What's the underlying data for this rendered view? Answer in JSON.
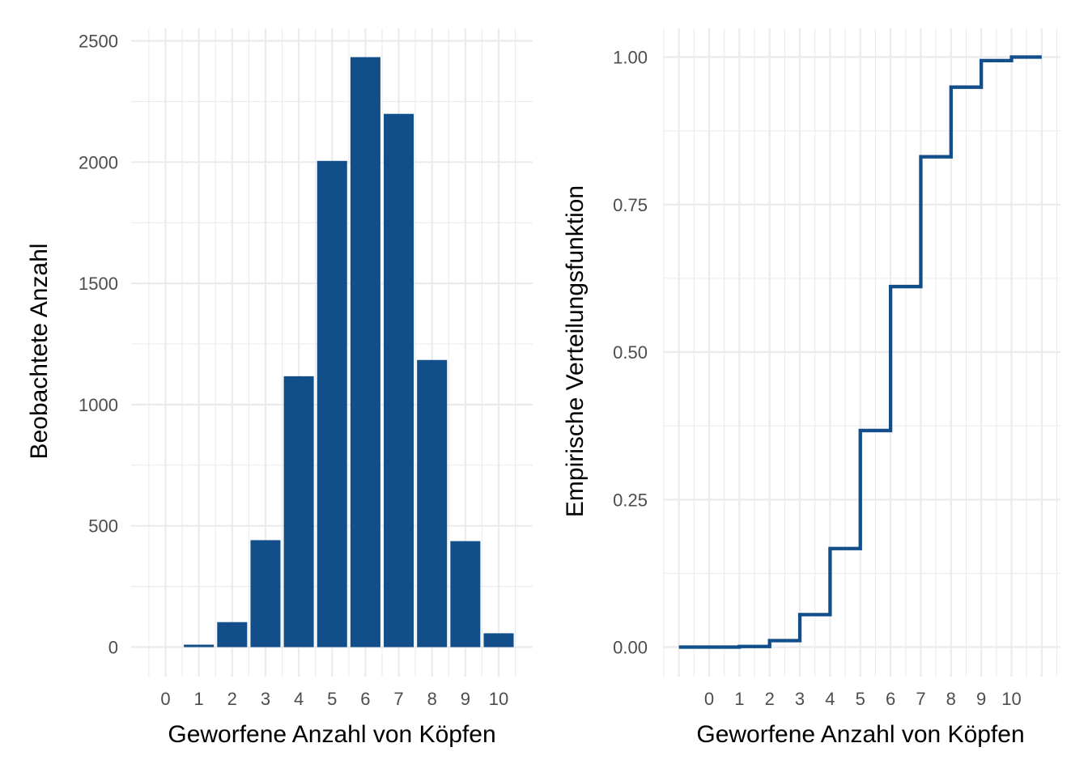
{
  "colors": {
    "bar_fill": "#114E8A",
    "step_line": "#114E8A",
    "grid": "#EBEBEB",
    "tick_text": "#4D4D4D"
  },
  "chart_data": [
    {
      "type": "bar",
      "xlabel": "Geworfene Anzahl von Köpfen",
      "ylabel": "Beobachtete Anzahl",
      "categories": [
        "0",
        "1",
        "2",
        "3",
        "4",
        "5",
        "6",
        "7",
        "8",
        "9",
        "10"
      ],
      "values": [
        0,
        10,
        103,
        441,
        1117,
        2005,
        2433,
        2199,
        1184,
        437,
        57
      ],
      "ylim": [
        0,
        2500
      ],
      "yticks": [
        0,
        500,
        1000,
        1500,
        2000,
        2500
      ],
      "ytick_labels": [
        "0",
        "500",
        "1000",
        "1500",
        "2000",
        "2500"
      ],
      "grid": true
    },
    {
      "type": "line",
      "step": true,
      "xlabel": "Geworfene Anzahl von Köpfen",
      "ylabel": "Empirische Verteilungsfunktion",
      "x": [
        -1,
        0,
        1,
        2,
        3,
        4,
        5,
        6,
        7,
        8,
        9,
        10,
        11
      ],
      "y": [
        0.0,
        0.0,
        0.001,
        0.011,
        0.055,
        0.167,
        0.367,
        0.611,
        0.831,
        0.949,
        0.994,
        1.0,
        1.0
      ],
      "xticks": [
        0,
        1,
        2,
        3,
        4,
        5,
        6,
        7,
        8,
        9,
        10
      ],
      "xtick_labels": [
        "0",
        "1",
        "2",
        "3",
        "4",
        "5",
        "6",
        "7",
        "8",
        "9",
        "10"
      ],
      "xlim": [
        -1,
        11
      ],
      "ylim": [
        0,
        1
      ],
      "yticks": [
        0,
        0.25,
        0.5,
        0.75,
        1
      ],
      "ytick_labels": [
        "0.00",
        "0.25",
        "0.50",
        "0.75",
        "1.00"
      ],
      "grid": true
    }
  ]
}
